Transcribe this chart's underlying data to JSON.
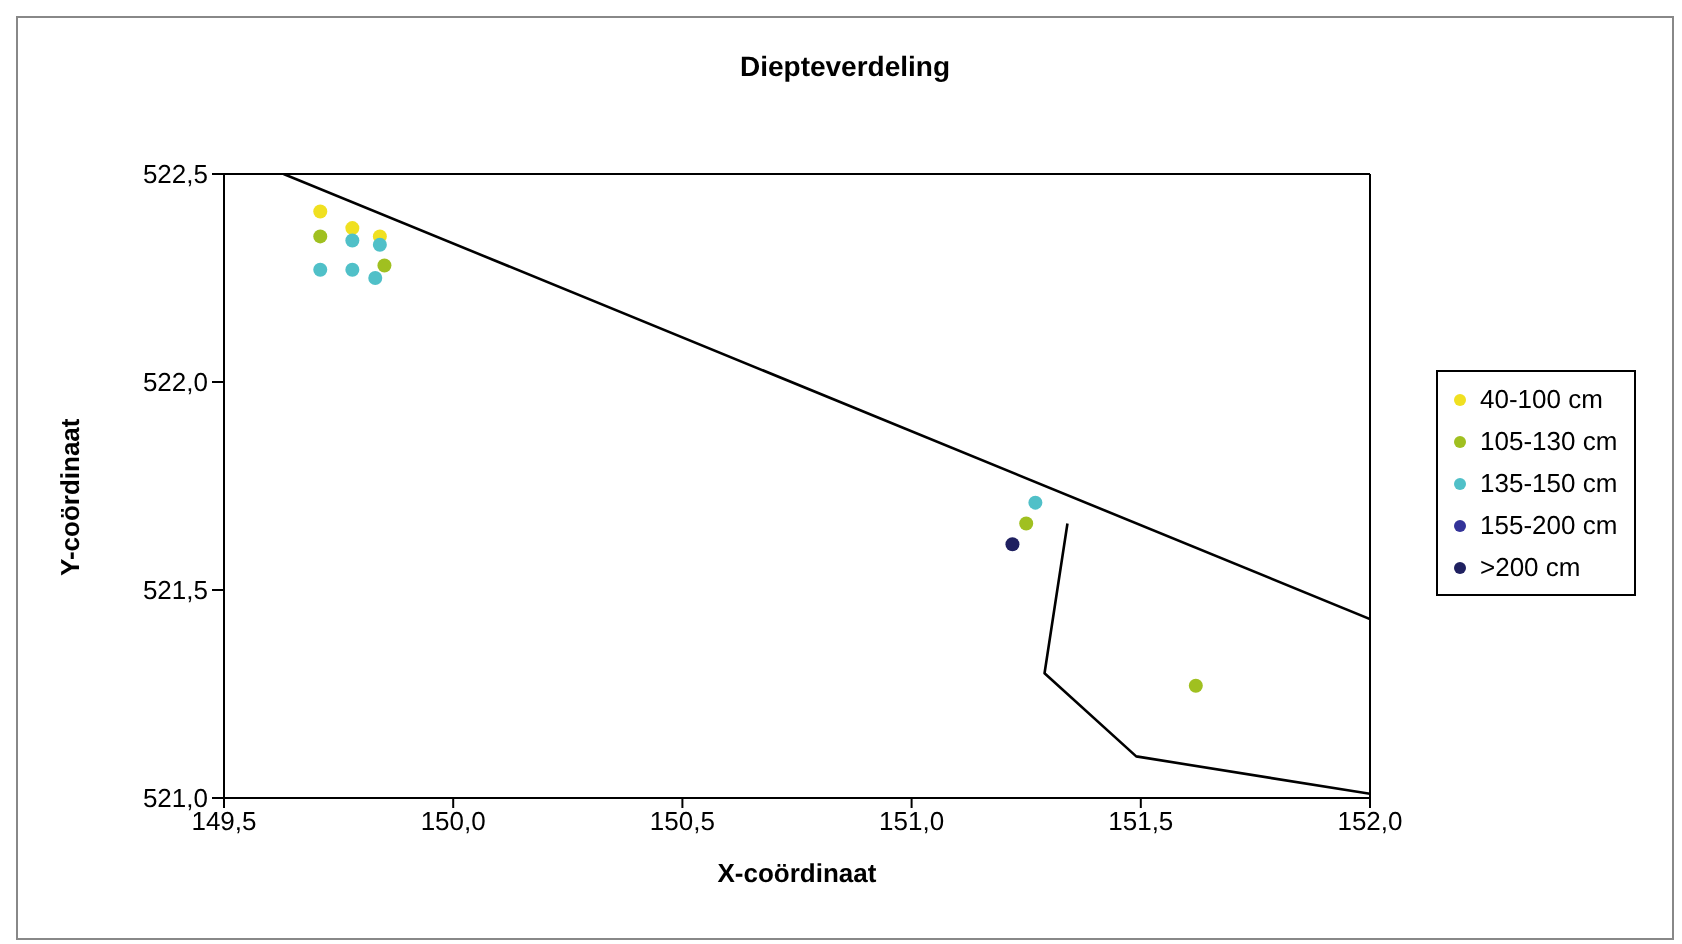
{
  "chart_data": {
    "type": "scatter",
    "title": "Diepteverdeling",
    "xlabel": "X-coördinaat",
    "ylabel": "Y-coördinaat",
    "xlim": [
      149.5,
      152.0
    ],
    "ylim": [
      521.0,
      522.5
    ],
    "xticks": [
      {
        "value": 149.5,
        "label": "149,5"
      },
      {
        "value": 150.0,
        "label": "150,0"
      },
      {
        "value": 150.5,
        "label": "150,5"
      },
      {
        "value": 151.0,
        "label": "151,0"
      },
      {
        "value": 151.5,
        "label": "151,5"
      },
      {
        "value": 152.0,
        "label": "152,0"
      }
    ],
    "yticks": [
      {
        "value": 521.0,
        "label": "521,0"
      },
      {
        "value": 521.5,
        "label": "521,5"
      },
      {
        "value": 522.0,
        "label": "522,0"
      },
      {
        "value": 522.5,
        "label": "522,5"
      }
    ],
    "legend": "right",
    "marker": "circle",
    "series": [
      {
        "name": "40-100 cm",
        "color": "#f0e020",
        "x": [
          149.71,
          149.78,
          149.84
        ],
        "values": [
          522.41,
          522.37,
          522.35
        ]
      },
      {
        "name": "105-130 cm",
        "color": "#a0c020",
        "x": [
          149.71,
          149.85,
          151.25,
          151.62
        ],
        "values": [
          522.35,
          522.28,
          521.66,
          521.27
        ]
      },
      {
        "name": "135-150 cm",
        "color": "#50c0c8",
        "x": [
          149.71,
          149.78,
          149.84,
          149.78,
          149.83,
          151.27
        ],
        "values": [
          522.27,
          522.34,
          522.33,
          522.27,
          522.25,
          521.71
        ]
      },
      {
        "name": "155-200 cm",
        "color": "#333399"
      },
      {
        "name": ">200 cm",
        "color": "#1f2060",
        "x": [
          151.22
        ],
        "values": [
          521.61
        ]
      },
      {
        "type": "line",
        "color": "#000000",
        "marker": "none",
        "x": [
          149.63,
          152.0
        ],
        "values": [
          522.5,
          521.43
        ]
      },
      {
        "type": "line",
        "color": "#000000",
        "marker": "none",
        "x": [
          151.34,
          151.29,
          151.49,
          152.0
        ],
        "values": [
          521.66,
          521.3,
          521.1,
          521.01
        ]
      }
    ]
  }
}
